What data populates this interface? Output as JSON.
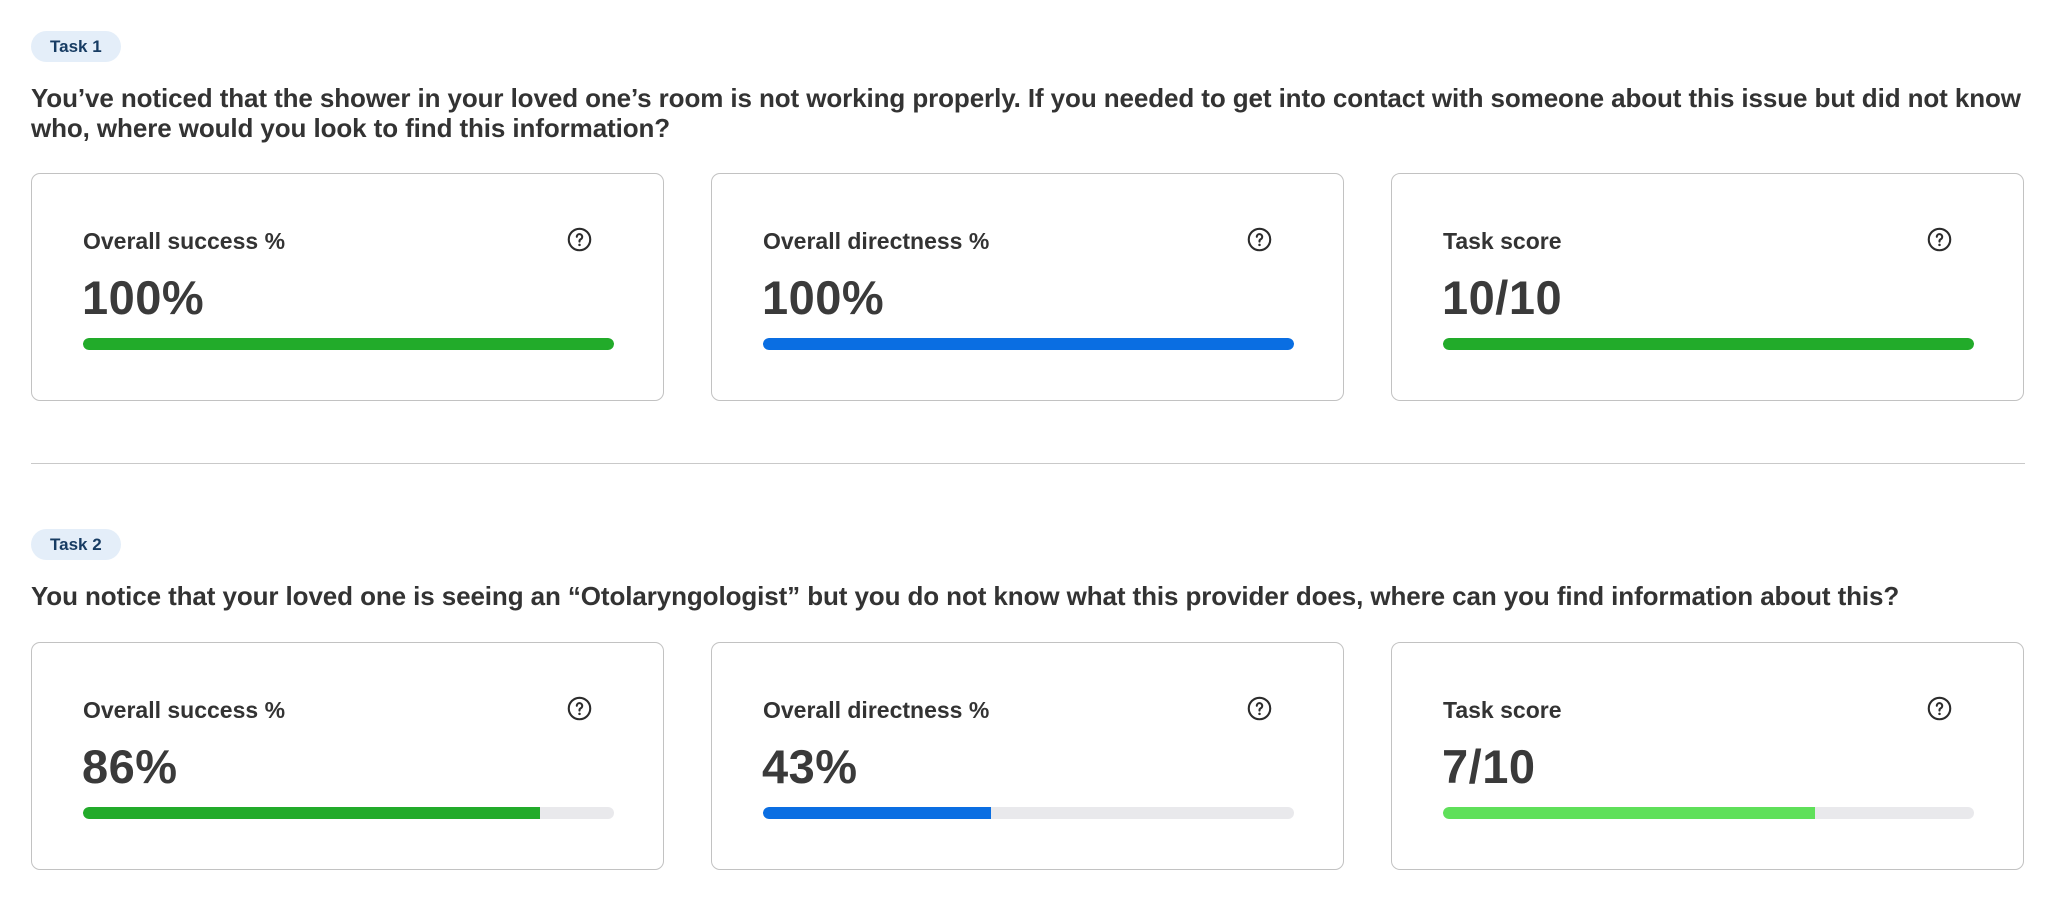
{
  "colors": {
    "success": "#22ab2a",
    "directness": "#0a6ee2",
    "score_full": "#22ab2a",
    "score_partial": "#5fe05a",
    "track": "#e9e9ec",
    "badge_bg": "#e4eef9",
    "badge_text": "#173c63"
  },
  "tasks": [
    {
      "badge": "Task 1",
      "question": "You’ve noticed that the shower in your loved one’s room is not working properly. If you needed to get into contact with someone about this issue but did not know who, where would you look to find this information?",
      "metrics": [
        {
          "label": "Overall success %",
          "value": "100%",
          "progress": 1.0,
          "color": "#22ab2a",
          "icon": "help-circle-icon"
        },
        {
          "label": "Overall directness %",
          "value": "100%",
          "progress": 1.0,
          "color": "#0a6ee2",
          "icon": "help-circle-icon"
        },
        {
          "label": "Task score",
          "value": "10/10",
          "progress": 1.0,
          "color": "#22ab2a",
          "icon": "help-circle-icon"
        }
      ]
    },
    {
      "badge": "Task 2",
      "question": "You notice that your loved one is seeing an “Otolaryngologist” but you do not know what this provider does, where can you find information about this?",
      "metrics": [
        {
          "label": "Overall success %",
          "value": "86%",
          "progress": 0.86,
          "color": "#22ab2a",
          "icon": "help-circle-icon"
        },
        {
          "label": "Overall directness %",
          "value": "43%",
          "progress": 0.43,
          "color": "#0a6ee2",
          "icon": "help-circle-icon"
        },
        {
          "label": "Task score",
          "value": "7/10",
          "progress": 0.7,
          "color": "#5fe05a",
          "icon": "help-circle-icon"
        }
      ]
    }
  ]
}
